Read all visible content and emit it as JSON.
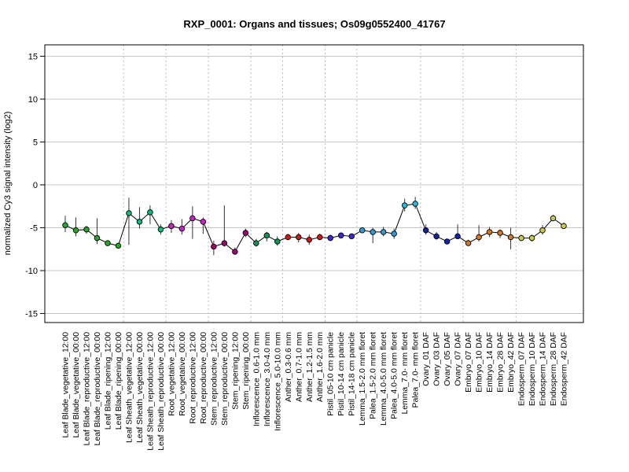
{
  "chart_data": {
    "type": "line",
    "title": "RXP_0001: Organs and tissues; Os09g0552400_41767",
    "ylabel": "normalized Cy3 signal intensity (log2)",
    "xlabel": "",
    "ylim": [
      -16,
      16
    ],
    "yticks": [
      -15,
      -10,
      -5,
      0,
      5,
      10,
      15
    ],
    "grid": true,
    "line_color": "#000000",
    "categories": [
      "Leaf Blade_vegetative_12:00",
      "Leaf Blade_vegetative_00:00",
      "Leaf Blade_reproductive_12:00",
      "Leaf Blade_reproductive_00:00",
      "Leaf Blade_ripening_12:00",
      "Leaf Blade_ripening_00:00",
      "Leaf Sheath_vegetative_12:00",
      "Leaf Sheath_vegetative_00:00",
      "Leaf Sheath_reproductive_12:00",
      "Leaf Sheath_reproductive_00:00",
      "Root_vegetative_12:00",
      "Root_vegetative_00:00",
      "Root_reproductive_12:00",
      "Root_reproductive_00:00",
      "Stem_reproductive_12:00",
      "Stem_reproductive_00:00",
      "Stem_ripening_12:00",
      "Stem_ripening_00:00",
      "Inflorescence_0.6-1.0 mm",
      "Inflorescence_3.0-4.0 mm",
      "Inflorescence_5.0-10.0 mm",
      "Anther_0.3-0.6 mm",
      "Anther_0.7-1.0 mm",
      "Anther_1.2-1.5 mm",
      "Anther_1.6-2.0 mm",
      "Pistil_05-10 cm panicle",
      "Pistil_10-14 cm panicle",
      "Pistil_14-18 cm panicle",
      "Lemma_1.5-2.0 mm floret",
      "Palea_1.5-2.0 mm floret",
      "Lemma_4.0-5.0 mm floret",
      "Palea_4.0-5.0 mm floret",
      "Lemma_7.0- mm floret",
      "Palea_7.0- mm floret",
      "Ovary_01 DAF",
      "Ovary_03 DAF",
      "Ovary_05 DAF",
      "Ovary_07 DAF",
      "Embryo_07 DAF",
      "Embryo_10 DAF",
      "Embryo_14 DAF",
      "Embryo_28 DAF",
      "Embryo_42 DAF",
      "Endosperm_07 DAF",
      "Endosperm_10 DAF",
      "Endosperm_14 DAF",
      "Endosperm_28 DAF",
      "Endosperm_42 DAF"
    ],
    "values": [
      -4.7,
      -5.3,
      -5.2,
      -6.2,
      -6.8,
      -7.1,
      -3.3,
      -4.3,
      -3.2,
      -5.2,
      -4.8,
      -5.1,
      -3.9,
      -4.3,
      -7.2,
      -6.8,
      -7.8,
      -5.6,
      -6.8,
      -5.9,
      -6.6,
      -6.1,
      -6.1,
      -6.4,
      -6.1,
      -6.2,
      -5.9,
      -6.0,
      -5.3,
      -5.5,
      -5.5,
      -5.7,
      -2.4,
      -2.2,
      -5.3,
      -6.0,
      -6.6,
      -6.0,
      -6.8,
      -6.1,
      -5.5,
      -5.6,
      -6.1,
      -6.2,
      -6.2,
      -5.3,
      -3.9,
      -4.8
    ],
    "err_low": [
      -5.5,
      -6.0,
      -5.7,
      -6.9,
      -7.1,
      -7.4,
      -7.0,
      -5.1,
      -4.6,
      -5.8,
      -5.6,
      -5.8,
      -6.3,
      -5.7,
      -8.2,
      -7.2,
      -8.1,
      -6.1,
      -7.2,
      -6.6,
      -7.1,
      -6.4,
      -6.7,
      -7.0,
      -6.4,
      -6.5,
      -6.2,
      -6.3,
      -5.6,
      -6.8,
      -6.0,
      -6.3,
      -3.1,
      -2.8,
      -5.8,
      -6.4,
      -6.9,
      -6.3,
      -7.1,
      -6.6,
      -6.1,
      -6.2,
      -7.5,
      -6.5,
      -6.6,
      -5.8,
      -4.1,
      -5.0
    ],
    "err_high": [
      -3.6,
      -3.8,
      -4.8,
      -3.9,
      -6.5,
      -6.8,
      -1.5,
      -2.6,
      -2.4,
      -4.6,
      -4.1,
      -4.0,
      -2.5,
      -3.8,
      -6.5,
      -2.4,
      -7.3,
      -5.1,
      -6.3,
      -5.5,
      -6.0,
      -5.7,
      -5.6,
      -5.8,
      -5.7,
      -5.8,
      -5.7,
      -5.7,
      -5.0,
      -5.0,
      -4.9,
      -5.1,
      -1.6,
      -1.4,
      -4.6,
      -5.5,
      -6.3,
      -4.6,
      -6.4,
      -4.7,
      -4.9,
      -5.2,
      -5.0,
      -5.8,
      -5.8,
      -4.7,
      -3.5,
      -4.4
    ],
    "colors": [
      "#22aa22",
      "#22aa22",
      "#22aa22",
      "#22aa22",
      "#22aa22",
      "#22aa22",
      "#00c07a",
      "#00c07a",
      "#00c07a",
      "#00c07a",
      "#cc22cc",
      "#cc22cc",
      "#cc22cc",
      "#cc22cc",
      "#aa0077",
      "#aa0077",
      "#aa0077",
      "#aa0077",
      "#009955",
      "#009955",
      "#009955",
      "#dd1111",
      "#dd1111",
      "#dd1111",
      "#dd1111",
      "#4422dd",
      "#4422dd",
      "#4422dd",
      "#3399dd",
      "#3399dd",
      "#3399dd",
      "#3399dd",
      "#22bbdd",
      "#22bbdd",
      "#1122aa",
      "#1122aa",
      "#1122aa",
      "#1122aa",
      "#dd7711",
      "#dd7711",
      "#dd7711",
      "#dd7711",
      "#dd7711",
      "#cccc44",
      "#cccc44",
      "#cccc44",
      "#cccc44",
      "#cccc44"
    ],
    "vertical_separators_after": [
      5,
      9,
      13,
      17,
      20,
      24,
      27,
      33,
      37,
      42
    ]
  }
}
